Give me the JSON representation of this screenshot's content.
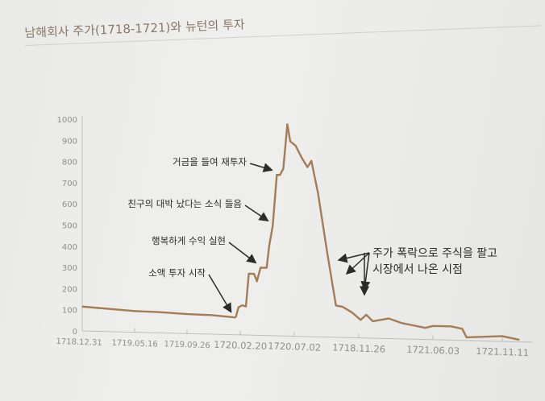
{
  "chart_data": {
    "type": "line",
    "title": "남해회사 주가(1718-1721)와 뉴턴의 투자",
    "xlabel": "",
    "ylabel": "",
    "ylim": [
      0,
      1000
    ],
    "yticks": [
      0,
      100,
      200,
      300,
      400,
      500,
      600,
      700,
      800,
      900,
      1000
    ],
    "xtick_labels": [
      "1718.12.31",
      "1719.05.16",
      "1719.09.26",
      "1720.02.20",
      "1720.07.02",
      "1718.11.26",
      "1721.06.03",
      "1721.11.11"
    ],
    "grid": false,
    "line_color": "#a57c55",
    "series": [
      {
        "points": [
          [
            "1718-12-31",
            115
          ],
          [
            "1719-02-15",
            110
          ],
          [
            "1719-05-16",
            100
          ],
          [
            "1719-07-15",
            98
          ],
          [
            "1719-09-26",
            92
          ],
          [
            "1719-12-01",
            90
          ],
          [
            "1720-02-05",
            82
          ],
          [
            "1720-02-08",
            85
          ],
          [
            "1720-02-15",
            130
          ],
          [
            "1720-02-25",
            140
          ],
          [
            "1720-03-05",
            135
          ],
          [
            "1720-03-12",
            290
          ],
          [
            "1720-03-25",
            290
          ],
          [
            "1720-04-01",
            255
          ],
          [
            "1720-04-10",
            320
          ],
          [
            "1720-04-25",
            320
          ],
          [
            "1720-05-01",
            420
          ],
          [
            "1720-05-10",
            520
          ],
          [
            "1720-05-20",
            760
          ],
          [
            "1720-05-28",
            760
          ],
          [
            "1720-06-05",
            790
          ],
          [
            "1720-06-15",
            1000
          ],
          [
            "1720-06-22",
            920
          ],
          [
            "1720-07-05",
            900
          ],
          [
            "1720-07-20",
            840
          ],
          [
            "1720-08-01",
            800
          ],
          [
            "1720-08-10",
            830
          ],
          [
            "1720-08-25",
            680
          ],
          [
            "1720-09-15",
            400
          ],
          [
            "1720-10-05",
            150
          ],
          [
            "1720-10-20",
            145
          ],
          [
            "1720-11-10",
            120
          ],
          [
            "1720-12-01",
            85
          ],
          [
            "1720-12-15",
            110
          ],
          [
            "1721-01-01",
            80
          ],
          [
            "1721-02-10",
            95
          ],
          [
            "1721-03-15",
            75
          ],
          [
            "1721-05-15",
            55
          ],
          [
            "1721-06-03",
            65
          ],
          [
            "1721-07-15",
            65
          ],
          [
            "1721-08-10",
            55
          ],
          [
            "1721-08-20",
            15
          ],
          [
            "1721-10-01",
            20
          ],
          [
            "1721-11-11",
            25
          ],
          [
            "1721-12-20",
            10
          ]
        ]
      }
    ],
    "annotations": [
      {
        "text": "소액 투자 시작",
        "date": "1720-02-08"
      },
      {
        "text": "행복하게 수익 실현",
        "date": "1720-04-10"
      },
      {
        "text": "친구의 대박 났다는 소식 들음",
        "date": "1720-05-10"
      },
      {
        "text": "거금을 들여 재투자",
        "date": "1720-05-20"
      },
      {
        "text": "주가 폭락으로 주식을 팔고",
        "text2": "시장에서 나온 시점",
        "date": "1720-10-05"
      }
    ]
  }
}
